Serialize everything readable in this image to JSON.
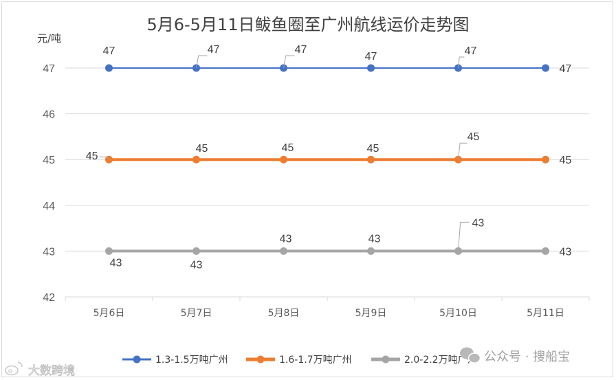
{
  "chart_data": {
    "type": "line",
    "title": "5月6-5月11日鲅鱼圈至广州航线运价走势图",
    "ylabel": "元/吨",
    "xlabel": "",
    "ylim": [
      42,
      47
    ],
    "yticks": [
      42,
      43,
      44,
      45,
      46,
      47
    ],
    "categories": [
      "5月6日",
      "5月7日",
      "5月8日",
      "5月9日",
      "5月10日",
      "5月11日"
    ],
    "grid": "horizontal",
    "legend": "bottom",
    "series": [
      {
        "name": "1.3-1.5万吨广州",
        "color": "#4472c4",
        "values": [
          47,
          47,
          47,
          47,
          47,
          47
        ]
      },
      {
        "name": "1.6-1.7万吨广州",
        "color": "#ed7d31",
        "values": [
          45,
          45,
          45,
          45,
          45,
          45
        ]
      },
      {
        "name": "2.0-2.2万吨广州",
        "color": "#a5a5a5",
        "values": [
          43,
          43,
          43,
          43,
          43,
          43
        ]
      }
    ]
  },
  "watermarks": {
    "left": "大数跨境",
    "right": "公众号 · 搜船宝"
  }
}
